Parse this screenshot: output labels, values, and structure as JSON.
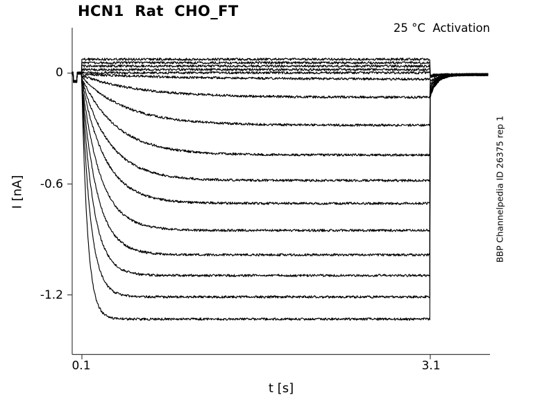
{
  "chart_data": {
    "type": "line",
    "title": "HCN1  Rat  CHO_FT",
    "annotation": "25 °C  Activation",
    "side_label": "BBP Channelpedia ID 26375 rep 1",
    "xlabel": "t [s]",
    "ylabel": "I [nA]",
    "x_ticks": [
      0.1,
      3.1
    ],
    "x_tick_labels": [
      "0.1",
      "3.1"
    ],
    "y_ticks": [
      0,
      -0.6,
      -1.2
    ],
    "y_tick_labels": [
      "0",
      "-0.6",
      "-1.2"
    ],
    "xlim": [
      0.016,
      3.615
    ],
    "ylim": [
      -1.52,
      0.24
    ],
    "grid": false,
    "legend": "none",
    "background_color": "#ffffff",
    "axes_color": "#3c3c3c",
    "trace_color": "#000000",
    "protocol": {
      "baseline_nA": 0,
      "t_step_start_s": 0.1,
      "t_step_end_s": 3.1,
      "t_trace_end_s": 3.6,
      "tail_final_nA": -0.008,
      "tail_tau_s": 0.06,
      "noise_nA": 0.0065,
      "blip": {
        "t0_s": 0.025,
        "t1_s": 0.06,
        "amp_nA": -0.045
      }
    },
    "traces": [
      {
        "ss_nA": 0.075,
        "tau_s": 0.02,
        "i0_nA": 0.075,
        "tail0_nA": -0.01
      },
      {
        "ss_nA": 0.056,
        "tau_s": 0.02,
        "i0_nA": 0.056,
        "tail0_nA": -0.012
      },
      {
        "ss_nA": 0.038,
        "tau_s": 0.02,
        "i0_nA": 0.038,
        "tail0_nA": -0.014
      },
      {
        "ss_nA": 0.019,
        "tau_s": 0.02,
        "i0_nA": 0.019,
        "tail0_nA": -0.016
      },
      {
        "ss_nA": 0.002,
        "tau_s": 0.02,
        "i0_nA": 0.002,
        "tail0_nA": -0.018
      },
      {
        "ss_nA": -0.034,
        "tau_s": 1.0,
        "i0_nA": -0.006,
        "tail0_nA": -0.026
      },
      {
        "ss_nA": -0.131,
        "tau_s": 0.5,
        "i0_nA": -0.013,
        "tail0_nA": -0.042
      },
      {
        "ss_nA": -0.282,
        "tau_s": 0.38,
        "i0_nA": -0.02,
        "tail0_nA": -0.058
      },
      {
        "ss_nA": -0.443,
        "tau_s": 0.3,
        "i0_nA": -0.027,
        "tail0_nA": -0.073
      },
      {
        "ss_nA": -0.581,
        "tau_s": 0.24,
        "i0_nA": -0.034,
        "tail0_nA": -0.086
      },
      {
        "ss_nA": -0.705,
        "tau_s": 0.2,
        "i0_nA": -0.041,
        "tail0_nA": -0.097
      },
      {
        "ss_nA": -0.851,
        "tau_s": 0.16,
        "i0_nA": -0.048,
        "tail0_nA": -0.106
      },
      {
        "ss_nA": -0.983,
        "tau_s": 0.13,
        "i0_nA": -0.055,
        "tail0_nA": -0.113
      },
      {
        "ss_nA": -1.095,
        "tau_s": 0.1,
        "i0_nA": -0.062,
        "tail0_nA": -0.119
      },
      {
        "ss_nA": -1.211,
        "tau_s": 0.075,
        "i0_nA": -0.069,
        "tail0_nA": -0.124
      },
      {
        "ss_nA": -1.331,
        "tau_s": 0.05,
        "i0_nA": -0.076,
        "tail0_nA": -0.127
      }
    ]
  }
}
